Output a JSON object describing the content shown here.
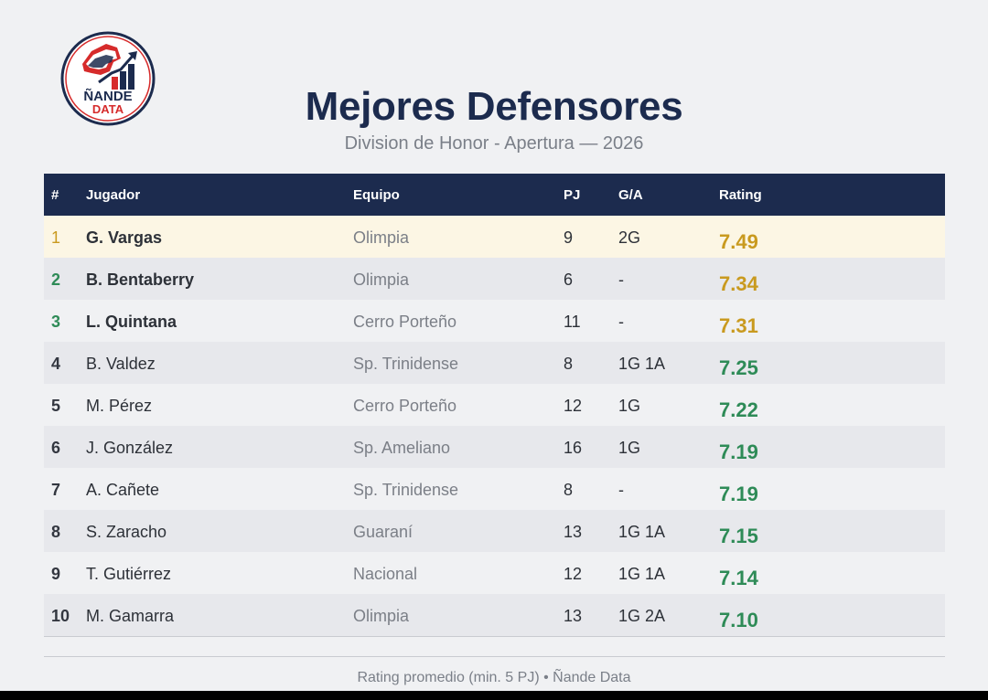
{
  "header": {
    "logo_text_line1": "ÑANDE",
    "logo_text_line2": "DATA",
    "title": "Mejores Defensores",
    "subtitle": "Division de Honor - Apertura — 2026"
  },
  "table": {
    "columns": [
      "#",
      "Jugador",
      "Equipo",
      "PJ",
      "G/A",
      "Rating"
    ],
    "rows": [
      {
        "rank": "1",
        "player": "G. Vargas",
        "team": "Olimpia",
        "pj": "9",
        "ga": "2G",
        "rating": "7.49"
      },
      {
        "rank": "2",
        "player": "B. Bentaberry",
        "team": "Olimpia",
        "pj": "6",
        "ga": "-",
        "rating": "7.34"
      },
      {
        "rank": "3",
        "player": "L. Quintana",
        "team": "Cerro Porteño",
        "pj": "11",
        "ga": "-",
        "rating": "7.31"
      },
      {
        "rank": "4",
        "player": "B. Valdez",
        "team": "Sp. Trinidense",
        "pj": "8",
        "ga": "1G 1A",
        "rating": "7.25"
      },
      {
        "rank": "5",
        "player": "M. Pérez",
        "team": "Cerro Porteño",
        "pj": "12",
        "ga": "1G",
        "rating": "7.22"
      },
      {
        "rank": "6",
        "player": "J. González",
        "team": "Sp. Ameliano",
        "pj": "16",
        "ga": "1G",
        "rating": "7.19"
      },
      {
        "rank": "7",
        "player": "A. Cañete",
        "team": "Sp. Trinidense",
        "pj": "8",
        "ga": "-",
        "rating": "7.19"
      },
      {
        "rank": "8",
        "player": "S. Zaracho",
        "team": "Guaraní",
        "pj": "13",
        "ga": "1G 1A",
        "rating": "7.15"
      },
      {
        "rank": "9",
        "player": "T. Gutiérrez",
        "team": "Nacional",
        "pj": "12",
        "ga": "1G 1A",
        "rating": "7.14"
      },
      {
        "rank": "10",
        "player": "M. Gamarra",
        "team": "Olimpia",
        "pj": "13",
        "ga": "1G 2A",
        "rating": "7.10"
      }
    ]
  },
  "footer": {
    "text": "Rating promedio (min. 5 PJ)  •  Ñande Data"
  },
  "colors": {
    "header_bg": "#1c2b4e",
    "gold": "#c99a1f",
    "green": "#2e8b57",
    "first_row_bg": "#fcf6e4"
  }
}
